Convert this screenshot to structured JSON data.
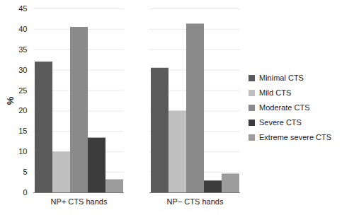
{
  "chart_data": {
    "type": "bar",
    "y_label": "%",
    "categories": [
      "NP+ CTS hands",
      "NP− CTS hands"
    ],
    "series": [
      {
        "name": "Minimal CTS",
        "color": "#5a5a5a",
        "values": [
          32,
          30.5
        ]
      },
      {
        "name": "Mild CTS",
        "color": "#c0c0c0",
        "values": [
          10,
          20
        ]
      },
      {
        "name": "Moderate CTS",
        "color": "#8a8a8a",
        "values": [
          40.5,
          41.3
        ]
      },
      {
        "name": "Severe CTS",
        "color": "#3c3c3c",
        "values": [
          13.4,
          2.9
        ]
      },
      {
        "name": "Extreme severe CTS",
        "color": "#9c9c9c",
        "values": [
          3.2,
          4.6
        ]
      }
    ],
    "ylim": [
      0,
      45
    ],
    "yticks": [
      0,
      5,
      10,
      15,
      20,
      25,
      30,
      35,
      40,
      45
    ],
    "grid": true,
    "legend": "right"
  }
}
